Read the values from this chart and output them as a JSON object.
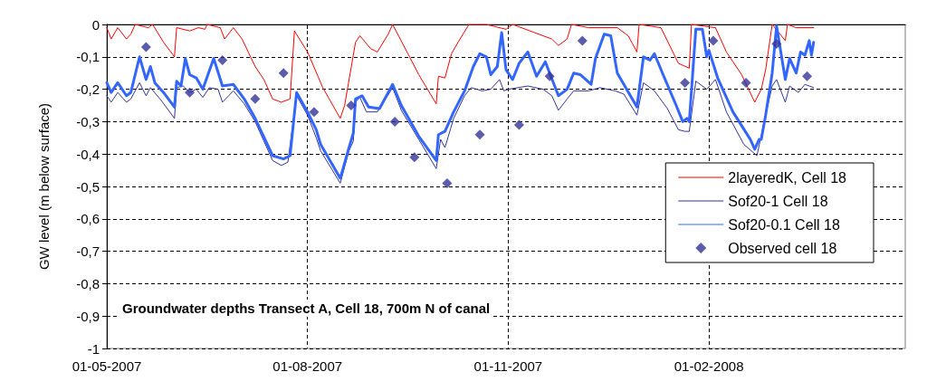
{
  "chart_data": {
    "type": "line",
    "title": "Groundwater depths Transect A, Cell 18, 700m N of canal",
    "ylabel": "GW level (m below surface)",
    "xlim": [
      "2007-05-01",
      "2008-05-01"
    ],
    "xticks": [
      {
        "value": "2007-05-01",
        "label": "01-05-2007"
      },
      {
        "value": "2007-08-01",
        "label": "01-08-2007"
      },
      {
        "value": "2007-11-01",
        "label": "01-11-2007"
      },
      {
        "value": "2008-02-01",
        "label": "01-02-2008"
      }
    ],
    "ylim": [
      -1,
      0
    ],
    "yticks": [
      -1,
      {
        "value": -0.9,
        "label": "-0,9"
      },
      {
        "value": -0.8,
        "label": "-0,8"
      },
      {
        "value": -0.7,
        "label": "-0,7"
      },
      {
        "value": -0.6,
        "label": "-0,6"
      },
      {
        "value": -0.5,
        "label": "-0,5"
      },
      {
        "value": -0.4,
        "label": "-0,4"
      },
      {
        "value": -0.3,
        "label": "-0,3"
      },
      {
        "value": -0.2,
        "label": "-0,2"
      },
      {
        "value": -0.1,
        "label": "-0,1"
      },
      0
    ],
    "grid": true,
    "legend": "right",
    "marker": "none",
    "line_style": "solid",
    "series": [
      {
        "name": "2layeredK, Cell 18",
        "color": "#ff0000",
        "x": [
          "2007-05-01",
          "2007-05-03",
          "2007-05-06",
          "2007-05-10",
          "2007-05-12",
          "2007-05-14",
          "2007-05-20",
          "2007-05-22",
          "2007-05-27",
          "2007-06-01",
          "2007-06-02",
          "2007-06-08",
          "2007-06-12",
          "2007-06-15",
          "2007-06-16",
          "2007-06-22",
          "2007-06-24",
          "2007-06-28",
          "2007-07-02",
          "2007-07-08",
          "2007-07-12",
          "2007-07-16",
          "2007-07-20",
          "2007-07-24",
          "2007-07-26",
          "2007-08-01",
          "2007-08-08",
          "2007-08-16",
          "2007-08-18",
          "2007-08-23",
          "2007-08-25",
          "2007-08-30",
          "2007-09-02",
          "2007-09-07",
          "2007-09-09",
          "2007-09-16",
          "2007-09-21",
          "2007-09-29",
          "2007-09-30",
          "2007-10-03",
          "2007-10-06",
          "2007-10-09",
          "2007-10-14",
          "2007-10-22",
          "2007-10-31",
          "2007-11-03",
          "2007-11-21",
          "2007-11-24",
          "2007-11-28",
          "2007-11-30",
          "2007-12-08",
          "2007-12-21",
          "2007-12-26",
          "2007-12-30",
          "2007-12-31",
          "2008-01-10",
          "2008-01-18",
          "2008-01-23",
          "2008-01-24",
          "2008-02-04",
          "2008-02-09",
          "2008-02-16",
          "2008-02-22",
          "2008-02-25",
          "2008-02-27",
          "2008-03-01",
          "2008-03-07",
          "2008-03-08",
          "2008-03-12",
          "2008-03-20"
        ],
        "values": [
          -0.01,
          -0.045,
          -0.01,
          -0.045,
          -0.03,
          0,
          -0.01,
          0,
          -0.055,
          -0.1,
          -0.01,
          -0.02,
          -0.01,
          -0.015,
          0,
          -0.01,
          -0.045,
          -0.01,
          -0.045,
          -0.13,
          -0.17,
          -0.23,
          -0.24,
          -0.23,
          -0.02,
          -0.085,
          -0.195,
          -0.29,
          -0.25,
          -0.055,
          -0.035,
          -0.075,
          -0.085,
          -0.03,
          0,
          -0.09,
          -0.155,
          -0.245,
          -0.16,
          -0.165,
          -0.09,
          -0.055,
          0,
          0,
          -0.015,
          0,
          -0.045,
          -0.065,
          -0.045,
          0,
          -0.01,
          -0.01,
          -0.035,
          -0.085,
          0,
          -0.01,
          -0.12,
          -0.135,
          0,
          -0.01,
          -0.085,
          -0.155,
          -0.24,
          -0.2,
          -0.14,
          0,
          -0.05,
          0,
          -0.01,
          -0.01
        ]
      },
      {
        "name": "Sof20-1 Cell 18",
        "color": "#333399",
        "x": [
          "2007-05-01",
          "2007-05-03",
          "2007-05-06",
          "2007-05-10",
          "2007-05-12",
          "2007-05-16",
          "2007-05-19",
          "2007-05-21",
          "2007-05-26",
          "2007-06-01",
          "2007-06-02",
          "2007-06-05",
          "2007-06-08",
          "2007-06-11",
          "2007-06-14",
          "2007-06-17",
          "2007-06-21",
          "2007-06-23",
          "2007-06-28",
          "2007-07-03",
          "2007-07-08",
          "2007-07-16",
          "2007-07-20",
          "2007-07-23",
          "2007-07-27",
          "2007-08-01",
          "2007-08-05",
          "2007-08-07",
          "2007-08-16",
          "2007-08-20",
          "2007-08-22",
          "2007-08-23",
          "2007-08-25",
          "2007-08-28",
          "2007-09-02",
          "2007-09-09",
          "2007-09-13",
          "2007-09-21",
          "2007-09-29",
          "2007-10-01",
          "2007-10-03",
          "2007-10-07",
          "2007-10-12",
          "2007-10-15",
          "2007-10-20",
          "2007-10-24",
          "2007-10-28",
          "2007-10-30",
          "2007-11-01",
          "2007-11-10",
          "2007-11-17",
          "2007-11-21",
          "2007-11-24",
          "2007-11-28",
          "2007-12-01",
          "2007-12-08",
          "2007-12-13",
          "2007-12-20",
          "2007-12-24",
          "2007-12-30",
          "2008-01-02",
          "2008-01-07",
          "2008-01-13",
          "2008-01-18",
          "2008-01-21",
          "2008-01-23",
          "2008-01-26",
          "2008-01-31",
          "2008-02-04",
          "2008-02-09",
          "2008-02-17",
          "2008-02-23",
          "2008-02-27",
          "2008-03-01",
          "2008-03-03",
          "2008-03-07",
          "2008-03-09",
          "2008-03-13",
          "2008-03-16",
          "2008-03-20"
        ],
        "values": [
          -0.22,
          -0.24,
          -0.21,
          -0.24,
          -0.23,
          -0.18,
          -0.22,
          -0.195,
          -0.235,
          -0.29,
          -0.195,
          -0.19,
          -0.21,
          -0.2,
          -0.225,
          -0.195,
          -0.2,
          -0.24,
          -0.205,
          -0.245,
          -0.3,
          -0.42,
          -0.435,
          -0.425,
          -0.22,
          -0.28,
          -0.35,
          -0.39,
          -0.49,
          -0.39,
          -0.36,
          -0.24,
          -0.225,
          -0.27,
          -0.27,
          -0.195,
          -0.265,
          -0.355,
          -0.445,
          -0.355,
          -0.38,
          -0.29,
          -0.22,
          -0.195,
          -0.205,
          -0.2,
          -0.17,
          -0.205,
          -0.2,
          -0.19,
          -0.2,
          -0.22,
          -0.265,
          -0.23,
          -0.205,
          -0.205,
          -0.195,
          -0.205,
          -0.215,
          -0.28,
          -0.18,
          -0.205,
          -0.26,
          -0.325,
          -0.33,
          -0.33,
          -0.175,
          -0.2,
          -0.17,
          -0.27,
          -0.37,
          -0.405,
          -0.28,
          -0.19,
          -0.17,
          -0.24,
          -0.19,
          -0.21,
          -0.185,
          -0.195
        ]
      },
      {
        "name": "Sof20-0.1 Cell 18",
        "color": "#3366ff",
        "x": [
          "2007-05-01",
          "2007-05-03",
          "2007-05-06",
          "2007-05-10",
          "2007-05-12",
          "2007-05-16",
          "2007-05-19",
          "2007-05-21",
          "2007-05-23",
          "2007-05-27",
          "2007-06-01",
          "2007-06-02",
          "2007-06-04",
          "2007-06-06",
          "2007-06-08",
          "2007-06-11",
          "2007-06-14",
          "2007-06-19",
          "2007-06-23",
          "2007-06-28",
          "2007-07-03",
          "2007-07-08",
          "2007-07-16",
          "2007-07-21",
          "2007-07-24",
          "2007-07-27",
          "2007-08-01",
          "2007-08-05",
          "2007-08-07",
          "2007-08-16",
          "2007-08-20",
          "2007-08-22",
          "2007-08-23",
          "2007-08-26",
          "2007-08-29",
          "2007-09-03",
          "2007-09-09",
          "2007-09-13",
          "2007-09-21",
          "2007-09-29",
          "2007-09-30",
          "2007-10-03",
          "2007-10-07",
          "2007-10-12",
          "2007-10-16",
          "2007-10-19",
          "2007-10-22",
          "2007-10-24",
          "2007-10-27",
          "2007-10-29",
          "2007-10-31",
          "2007-11-03",
          "2007-11-06",
          "2007-11-10",
          "2007-11-14",
          "2007-11-18",
          "2007-11-24",
          "2007-11-28",
          "2007-12-01",
          "2007-12-04",
          "2007-12-09",
          "2007-12-11",
          "2007-12-15",
          "2007-12-18",
          "2007-12-21",
          "2007-12-24",
          "2007-12-30",
          "2008-01-02",
          "2008-01-05",
          "2008-01-07",
          "2008-01-11",
          "2008-01-17",
          "2008-01-20",
          "2008-01-22",
          "2008-01-23",
          "2008-01-26",
          "2008-01-29",
          "2008-01-31",
          "2008-02-01",
          "2008-02-05",
          "2008-02-12",
          "2008-02-20",
          "2008-02-22",
          "2008-02-24",
          "2008-02-25",
          "2008-02-27",
          "2008-03-01",
          "2008-03-03",
          "2008-03-07",
          "2008-03-09",
          "2008-03-12",
          "2008-03-14",
          "2008-03-16",
          "2008-03-18",
          "2008-03-19",
          "2008-03-20"
        ],
        "values": [
          -0.18,
          -0.21,
          -0.18,
          -0.22,
          -0.21,
          -0.1,
          -0.17,
          -0.13,
          -0.18,
          -0.21,
          -0.255,
          -0.175,
          -0.19,
          -0.105,
          -0.155,
          -0.165,
          -0.2,
          -0.105,
          -0.19,
          -0.185,
          -0.23,
          -0.29,
          -0.405,
          -0.415,
          -0.405,
          -0.21,
          -0.27,
          -0.325,
          -0.37,
          -0.475,
          -0.38,
          -0.335,
          -0.23,
          -0.22,
          -0.255,
          -0.26,
          -0.185,
          -0.25,
          -0.345,
          -0.42,
          -0.34,
          -0.33,
          -0.27,
          -0.205,
          -0.13,
          -0.09,
          -0.1,
          -0.155,
          -0.13,
          -0.025,
          -0.14,
          -0.17,
          -0.12,
          -0.085,
          -0.16,
          -0.115,
          -0.22,
          -0.2,
          -0.15,
          -0.155,
          -0.185,
          -0.105,
          -0.03,
          -0.035,
          -0.15,
          -0.185,
          -0.255,
          -0.1,
          -0.11,
          -0.09,
          -0.155,
          -0.25,
          -0.3,
          -0.29,
          -0.3,
          -0.015,
          -0.015,
          -0.1,
          -0.08,
          -0.165,
          -0.27,
          -0.355,
          -0.385,
          -0.355,
          -0.355,
          -0.28,
          -0.15,
          -0.005,
          -0.17,
          -0.105,
          -0.15,
          -0.085,
          -0.095,
          -0.05,
          -0.095,
          -0.055
        ]
      },
      {
        "name": "Observed cell 18",
        "type": "scatter",
        "marker": "diamond",
        "color": "#333399",
        "x": [
          "2007-05-19",
          "2007-06-08",
          "2007-06-23",
          "2007-07-08",
          "2007-07-21",
          "2007-08-04",
          "2007-08-21",
          "2007-09-10",
          "2007-09-19",
          "2007-10-04",
          "2007-10-19",
          "2007-11-06",
          "2007-11-20",
          "2007-12-05",
          "2008-01-21",
          "2008-02-03",
          "2008-02-18",
          "2008-03-03",
          "2008-03-17"
        ],
        "values": [
          -0.07,
          -0.21,
          -0.11,
          -0.23,
          -0.15,
          -0.27,
          -0.25,
          -0.3,
          -0.41,
          -0.49,
          -0.34,
          -0.31,
          -0.16,
          -0.05,
          -0.18,
          -0.05,
          -0.18,
          -0.06,
          -0.16
        ]
      }
    ]
  }
}
